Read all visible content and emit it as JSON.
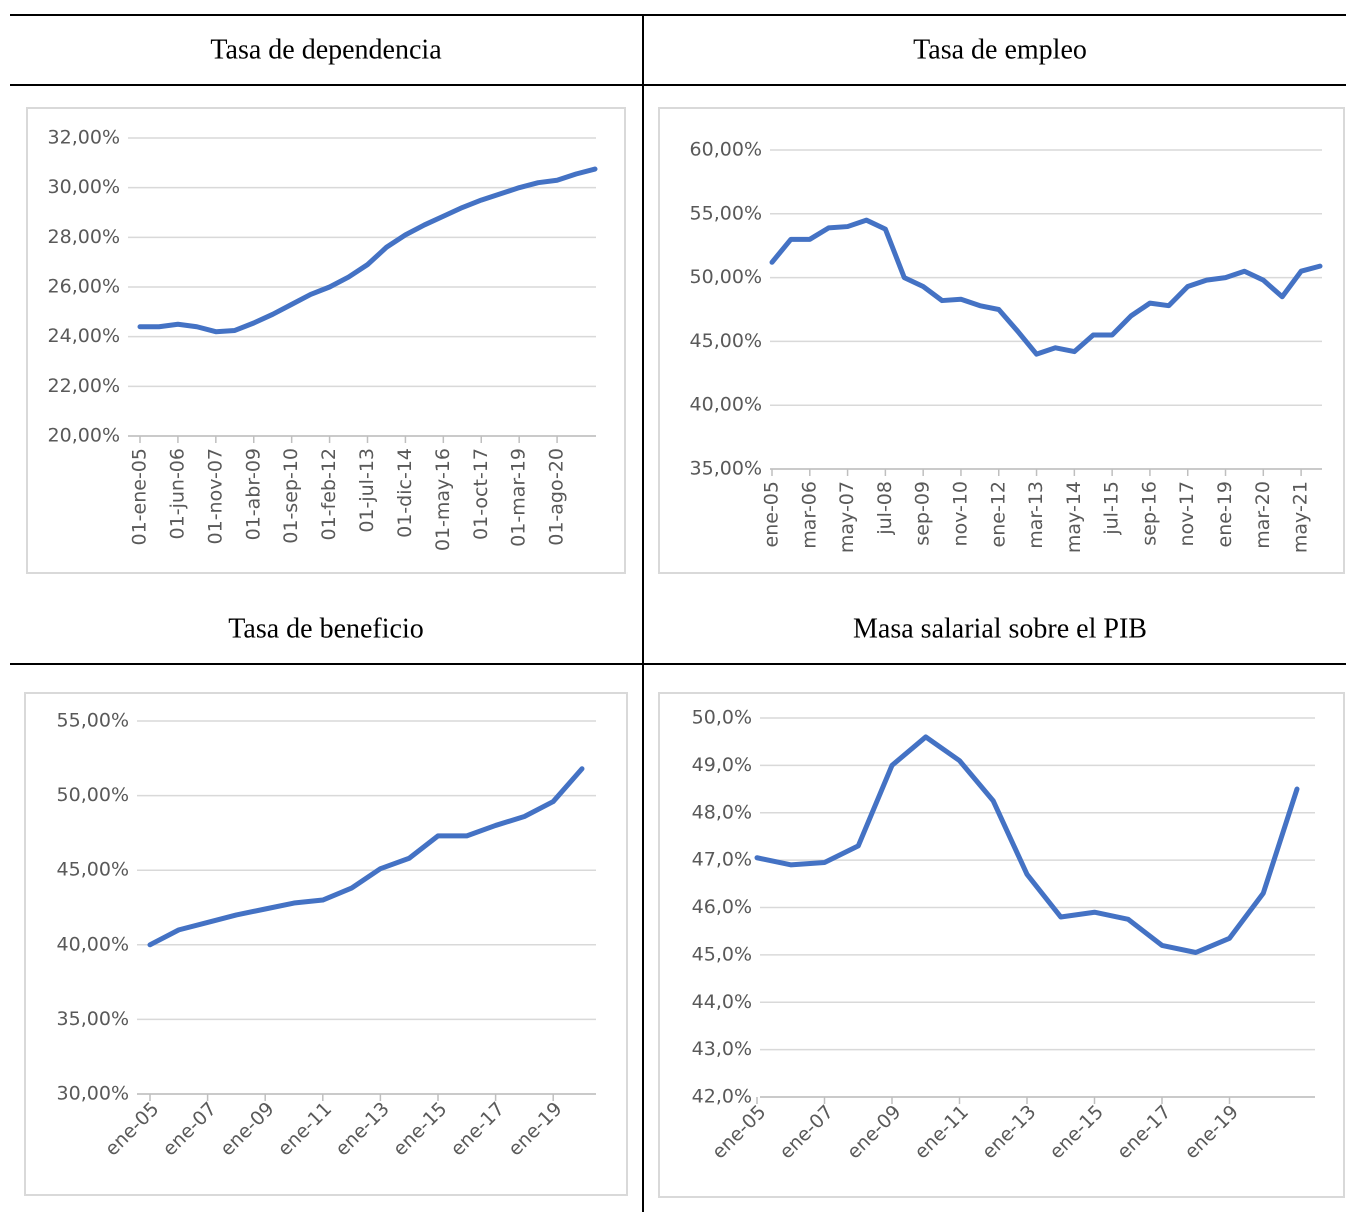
{
  "chart_data": [
    {
      "type": "line",
      "title": "Tasa de dependencia",
      "categories": [
        "01-ene-05",
        null,
        "01-jun-06",
        null,
        "01-nov-07",
        null,
        "01-abr-09",
        null,
        "01-sep-10",
        null,
        "01-feb-12",
        null,
        "01-jul-13",
        null,
        "01-dic-14",
        null,
        "01-may-16",
        null,
        "01-oct-17",
        null,
        "01-mar-19",
        null,
        "01-ago-20",
        null,
        null
      ],
      "values": [
        24.4,
        24.4,
        24.5,
        24.4,
        24.2,
        24.25,
        24.55,
        24.9,
        25.3,
        25.7,
        26.0,
        26.4,
        26.9,
        27.6,
        28.1,
        28.5,
        28.85,
        29.2,
        29.5,
        29.75,
        30.0,
        30.2,
        30.3,
        30.55,
        30.75
      ],
      "color": "#4472c4",
      "grid": true,
      "ylim": [
        20,
        32
      ],
      "yticks": [
        {
          "value": 20,
          "label": "20,00%"
        },
        {
          "value": 22,
          "label": "22,00%"
        },
        {
          "value": 24,
          "label": "24,00%"
        },
        {
          "value": 26,
          "label": "26,00%"
        },
        {
          "value": 28,
          "label": "28,00%"
        },
        {
          "value": 30,
          "label": "30,00%"
        },
        {
          "value": 32,
          "label": "32,00%"
        }
      ]
    },
    {
      "type": "line",
      "title": "Tasa de empleo",
      "categories": [
        "ene-05",
        null,
        "mar-06",
        null,
        "may-07",
        null,
        "jul-08",
        null,
        "sep-09",
        null,
        "nov-10",
        null,
        "ene-12",
        null,
        "mar-13",
        null,
        "may-14",
        null,
        "jul-15",
        null,
        "sep-16",
        null,
        "nov-17",
        null,
        "ene-19",
        null,
        "mar-20",
        null,
        "may-21",
        null
      ],
      "values": [
        51.2,
        53.0,
        53.0,
        53.9,
        54.0,
        54.5,
        53.8,
        50.0,
        49.3,
        48.2,
        48.3,
        47.8,
        47.5,
        45.8,
        44.0,
        44.5,
        44.2,
        45.5,
        45.5,
        47.0,
        48.0,
        47.8,
        49.3,
        49.8,
        50.0,
        50.5,
        49.8,
        48.5,
        50.5,
        50.9
      ],
      "color": "#4472c4",
      "grid": true,
      "ylim": [
        35,
        60
      ],
      "yticks": [
        {
          "value": 35,
          "label": "35,00%"
        },
        {
          "value": 40,
          "label": "40,00%"
        },
        {
          "value": 45,
          "label": "45,00%"
        },
        {
          "value": 50,
          "label": "50,00%"
        },
        {
          "value": 55,
          "label": "55,00%"
        },
        {
          "value": 60,
          "label": "60,00%"
        }
      ]
    },
    {
      "type": "line",
      "title": "Tasa de beneficio",
      "categories": [
        "ene-05",
        null,
        "ene-07",
        null,
        "ene-09",
        null,
        "ene-11",
        null,
        "ene-13",
        null,
        "ene-15",
        null,
        "ene-17",
        null,
        "ene-19",
        null
      ],
      "values": [
        40.0,
        41.0,
        41.5,
        42.0,
        42.4,
        42.8,
        43.0,
        43.8,
        45.1,
        45.8,
        47.3,
        47.3,
        48.0,
        48.6,
        49.6,
        51.8
      ],
      "color": "#4472c4",
      "grid": true,
      "ylim": [
        30,
        55
      ],
      "yticks": [
        {
          "value": 30,
          "label": "30,00%"
        },
        {
          "value": 35,
          "label": "35,00%"
        },
        {
          "value": 40,
          "label": "40,00%"
        },
        {
          "value": 45,
          "label": "45,00%"
        },
        {
          "value": 50,
          "label": "50,00%"
        },
        {
          "value": 55,
          "label": "55,00%"
        }
      ]
    },
    {
      "type": "line",
      "title": "Masa salarial sobre el PIB",
      "categories": [
        "ene-05",
        null,
        "ene-07",
        null,
        "ene-09",
        null,
        "ene-11",
        null,
        "ene-13",
        null,
        "ene-15",
        null,
        "ene-17",
        null,
        "ene-19",
        null,
        null
      ],
      "values": [
        47.05,
        46.9,
        46.95,
        47.3,
        49.0,
        49.6,
        49.1,
        48.25,
        46.7,
        45.8,
        45.9,
        45.75,
        45.2,
        45.05,
        45.35,
        46.3,
        48.5
      ],
      "color": "#4472c4",
      "grid": true,
      "ylim": [
        42,
        50
      ],
      "yticks": [
        {
          "value": 42,
          "label": "42,0%"
        },
        {
          "value": 43,
          "label": "43,0%"
        },
        {
          "value": 44,
          "label": "44,0%"
        },
        {
          "value": 45,
          "label": "45,0%"
        },
        {
          "value": 46,
          "label": "46,0%"
        },
        {
          "value": 47,
          "label": "47,0%"
        },
        {
          "value": 48,
          "label": "48,0%"
        },
        {
          "value": 49,
          "label": "49,0%"
        },
        {
          "value": 50,
          "label": "50,0%"
        }
      ]
    }
  ]
}
